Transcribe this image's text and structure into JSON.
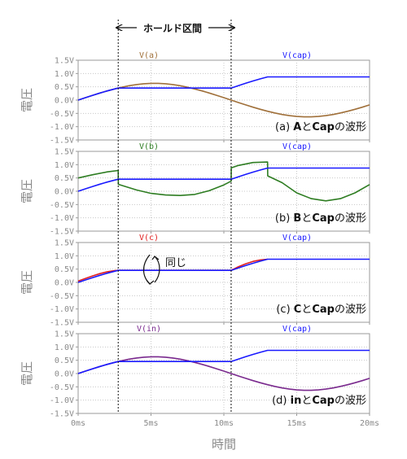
{
  "chart_data": {
    "type": "line",
    "xlabel": "時間",
    "x_unit": "ms",
    "xlim": [
      0,
      20
    ],
    "x_ticks": [
      "0ms",
      "5ms",
      "10ms",
      "15ms",
      "20ms"
    ],
    "ylabel": "電圧",
    "ylim": [
      -1.5,
      1.5
    ],
    "y_ticks": [
      "1.5V",
      "1.0V",
      "0.5V",
      "0.0V",
      "-0.5V",
      "-1.0V",
      "-1.5V"
    ],
    "hold_label": "ホールド区間",
    "hold_interval": [
      2.75,
      10.5
    ],
    "same_label": "同じ",
    "colors": {
      "cap": "#1a1aff",
      "a": "#a0703a",
      "b": "#2e7d22",
      "c": "#e02020",
      "in": "#7a2a8e"
    },
    "panels": [
      {
        "id": "a",
        "caption": "(a) AとCapの波形",
        "series": [
          {
            "name": "V(a)",
            "color": "#a0703a",
            "x": [
              0,
              0.5,
              1,
              1.5,
              2,
              2.5,
              2.75,
              3,
              3.5,
              4,
              4.5,
              5,
              5.5,
              6,
              6.5,
              7,
              7.5,
              8,
              8.5,
              9,
              9.5,
              10,
              10.5,
              11,
              11.5,
              12,
              12.5,
              13,
              13.5,
              14,
              14.5,
              15,
              15.5,
              16,
              16.5,
              17,
              17.5,
              18,
              18.5,
              19,
              19.5,
              20
            ],
            "y": [
              0,
              0.092,
              0.182,
              0.267,
              0.347,
              0.42,
              0.453,
              0.485,
              0.541,
              0.584,
              0.615,
              0.632,
              0.632,
              0.615,
              0.584,
              0.541,
              0.485,
              0.42,
              0.347,
              0.267,
              0.182,
              0.092,
              0,
              -0.092,
              -0.182,
              -0.267,
              -0.347,
              -0.42,
              -0.485,
              -0.541,
              -0.584,
              -0.615,
              -0.632,
              -0.632,
              -0.615,
              -0.584,
              -0.541,
              -0.485,
              -0.42,
              -0.347,
              -0.267,
              -0.182
            ]
          },
          {
            "name": "V(cap)",
            "color": "#1a1aff",
            "x": [
              0,
              0.5,
              1,
              1.5,
              2,
              2.5,
              2.75,
              10.5,
              11,
              11.5,
              12,
              12.5,
              13,
              20
            ],
            "y": [
              0,
              0.092,
              0.182,
              0.267,
              0.347,
              0.42,
              0.453,
              0.453,
              0.545,
              0.635,
              0.72,
              0.8,
              0.873,
              0.873
            ]
          }
        ]
      },
      {
        "id": "b",
        "caption": "(b) BとCapの波形",
        "series": [
          {
            "name": "V(b)",
            "color": "#2e7d22",
            "x": [
              0,
              1,
              2,
              2.75,
              2.76,
              4,
              5,
              6,
              7,
              8,
              9,
              10,
              10.5,
              10.51,
              11,
              12,
              13,
              13.01,
              14,
              15,
              16,
              17,
              18,
              19,
              20
            ],
            "y": [
              0.5,
              0.62,
              0.73,
              0.78,
              0.26,
              0.05,
              -0.08,
              -0.14,
              -0.16,
              -0.12,
              0.02,
              0.24,
              0.38,
              0.88,
              0.97,
              1.08,
              1.1,
              0.58,
              0.32,
              -0.06,
              -0.28,
              -0.36,
              -0.28,
              -0.06,
              0.25
            ]
          },
          {
            "name": "V(cap)",
            "color": "#1a1aff",
            "x": [
              0,
              0.5,
              1,
              1.5,
              2,
              2.5,
              2.75,
              10.5,
              11,
              11.5,
              12,
              12.5,
              13,
              20
            ],
            "y": [
              0,
              0.092,
              0.182,
              0.267,
              0.347,
              0.42,
              0.453,
              0.453,
              0.545,
              0.635,
              0.72,
              0.8,
              0.873,
              0.873
            ]
          }
        ]
      },
      {
        "id": "c",
        "caption": "(c) CとCapの波形",
        "series": [
          {
            "name": "V(c)",
            "color": "#e02020",
            "x": [
              0,
              0.5,
              1,
              1.5,
              2,
              2.5,
              2.75,
              10.5,
              11,
              11.5,
              12,
              12.5,
              13
            ],
            "y": [
              0.05,
              0.15,
              0.245,
              0.33,
              0.4,
              0.445,
              0.453,
              0.453,
              0.59,
              0.7,
              0.79,
              0.845,
              0.873
            ]
          },
          {
            "name": "V(cap)",
            "color": "#1a1aff",
            "x": [
              0,
              0.5,
              1,
              1.5,
              2,
              2.5,
              2.75,
              10.5,
              11,
              11.5,
              12,
              12.5,
              13,
              20
            ],
            "y": [
              0,
              0.092,
              0.182,
              0.267,
              0.347,
              0.42,
              0.453,
              0.453,
              0.545,
              0.635,
              0.72,
              0.8,
              0.873,
              0.873
            ]
          }
        ]
      },
      {
        "id": "d",
        "caption": "(d) inとCapの波形",
        "series": [
          {
            "name": "V(in)",
            "color": "#7a2a8e",
            "x": [
              0,
              0.5,
              1,
              1.5,
              2,
              2.5,
              3,
              3.5,
              4,
              4.5,
              5,
              5.5,
              6,
              6.5,
              7,
              7.5,
              8,
              8.5,
              9,
              9.5,
              10,
              10.5,
              11,
              11.5,
              12,
              12.5,
              13,
              13.5,
              14,
              14.5,
              15,
              15.5,
              16,
              16.5,
              17,
              17.5,
              18,
              18.5,
              19,
              19.5,
              20
            ],
            "y": [
              0,
              0.092,
              0.182,
              0.267,
              0.347,
              0.42,
              0.485,
              0.541,
              0.584,
              0.615,
              0.632,
              0.632,
              0.615,
              0.584,
              0.541,
              0.485,
              0.42,
              0.347,
              0.267,
              0.182,
              0.092,
              0,
              -0.092,
              -0.182,
              -0.267,
              -0.347,
              -0.42,
              -0.485,
              -0.541,
              -0.584,
              -0.615,
              -0.632,
              -0.632,
              -0.615,
              -0.584,
              -0.541,
              -0.485,
              -0.42,
              -0.347,
              -0.267,
              -0.182
            ]
          },
          {
            "name": "V(cap)",
            "color": "#1a1aff",
            "x": [
              0,
              0.5,
              1,
              1.5,
              2,
              2.5,
              2.75,
              10.5,
              11,
              11.5,
              12,
              12.5,
              13,
              20
            ],
            "y": [
              0,
              0.092,
              0.182,
              0.267,
              0.347,
              0.42,
              0.453,
              0.453,
              0.545,
              0.635,
              0.72,
              0.8,
              0.873,
              0.873
            ]
          }
        ]
      }
    ]
  }
}
